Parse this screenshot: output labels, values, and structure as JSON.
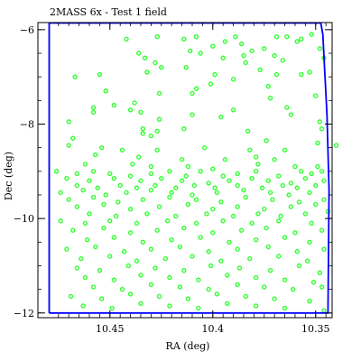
{
  "chart_data": {
    "type": "scatter",
    "title": "2MASS 6x - Test 1 field",
    "xlabel": "RA (deg)",
    "ylabel": "Dec (deg)",
    "xlim": [
      10.485,
      10.342
    ],
    "ylim": [
      -12.1,
      -5.85
    ],
    "x_inverted": true,
    "grid": false,
    "x_ticks": [
      10.45,
      10.4,
      10.35
    ],
    "x_tick_labels": [
      "10.45",
      "10.4",
      "10.35"
    ],
    "y_ticks": [
      -12,
      -10,
      -8,
      -6
    ],
    "y_tick_labels": [
      "−12",
      "−10",
      "−8",
      "−6"
    ],
    "colors": {
      "points": "#33ff33",
      "field_boundary": "#0000ff",
      "axes": "#000000"
    },
    "field_boundary": {
      "ra": [
        10.4795,
        10.4795,
        10.3475,
        10.3465,
        10.3445,
        10.3435,
        10.344,
        10.4795
      ],
      "dec": [
        -12.0,
        -5.86,
        -5.86,
        -6.1,
        -7.8,
        -9.4,
        -12.0,
        -12.0
      ]
    },
    "points": [
      [
        10.427,
        -6.15
      ],
      [
        10.408,
        -6.15
      ],
      [
        10.414,
        -6.2
      ],
      [
        10.394,
        -6.25
      ],
      [
        10.389,
        -6.15
      ],
      [
        10.369,
        -6.15
      ],
      [
        10.364,
        -6.15
      ],
      [
        10.359,
        -6.25
      ],
      [
        10.357,
        -6.2
      ],
      [
        10.352,
        -6.1
      ],
      [
        10.442,
        -6.2
      ],
      [
        10.4,
        -6.35
      ],
      [
        10.386,
        -6.3
      ],
      [
        10.381,
        -6.45
      ],
      [
        10.375,
        -6.4
      ],
      [
        10.37,
        -6.55
      ],
      [
        10.348,
        -6.4
      ],
      [
        10.436,
        -6.5
      ],
      [
        10.411,
        -6.45
      ],
      [
        10.406,
        -6.5
      ],
      [
        10.395,
        -6.6
      ],
      [
        10.385,
        -6.55
      ],
      [
        10.384,
        -6.7
      ],
      [
        10.366,
        -6.65
      ],
      [
        10.346,
        -6.6
      ],
      [
        10.433,
        -6.6
      ],
      [
        10.428,
        -6.7
      ],
      [
        10.432,
        -6.9
      ],
      [
        10.425,
        -6.8
      ],
      [
        10.413,
        -6.8
      ],
      [
        10.399,
        -6.95
      ],
      [
        10.377,
        -6.85
      ],
      [
        10.369,
        -6.95
      ],
      [
        10.357,
        -6.95
      ],
      [
        10.353,
        -6.9
      ],
      [
        10.467,
        -7.0
      ],
      [
        10.455,
        -6.95
      ],
      [
        10.401,
        -7.15
      ],
      [
        10.39,
        -7.05
      ],
      [
        10.373,
        -7.2
      ],
      [
        10.452,
        -7.3
      ],
      [
        10.426,
        -7.35
      ],
      [
        10.41,
        -7.35
      ],
      [
        10.408,
        -7.25
      ],
      [
        10.372,
        -7.45
      ],
      [
        10.35,
        -7.4
      ],
      [
        10.448,
        -7.6
      ],
      [
        10.438,
        -7.55
      ],
      [
        10.435,
        -7.75
      ],
      [
        10.39,
        -7.7
      ],
      [
        10.364,
        -7.65
      ],
      [
        10.458,
        -7.65
      ],
      [
        10.458,
        -7.75
      ],
      [
        10.44,
        -7.7
      ],
      [
        10.426,
        -7.9
      ],
      [
        10.41,
        -7.8
      ],
      [
        10.396,
        -7.85
      ],
      [
        10.362,
        -7.8
      ],
      [
        10.47,
        -7.95
      ],
      [
        10.434,
        -8.1
      ],
      [
        10.434,
        -8.2
      ],
      [
        10.414,
        -8.1
      ],
      [
        10.383,
        -8.15
      ],
      [
        10.348,
        -7.95
      ],
      [
        10.347,
        -8.1
      ],
      [
        10.468,
        -8.3
      ],
      [
        10.43,
        -8.25
      ],
      [
        10.427,
        -8.15
      ],
      [
        10.374,
        -8.35
      ],
      [
        10.34,
        -8.45
      ],
      [
        10.47,
        -8.45
      ],
      [
        10.454,
        -8.5
      ],
      [
        10.444,
        -8.55
      ],
      [
        10.427,
        -8.55
      ],
      [
        10.404,
        -8.5
      ],
      [
        10.382,
        -8.55
      ],
      [
        10.365,
        -8.55
      ],
      [
        10.349,
        -8.4
      ],
      [
        10.457,
        -8.65
      ],
      [
        10.436,
        -8.7
      ],
      [
        10.415,
        -8.75
      ],
      [
        10.394,
        -8.75
      ],
      [
        10.379,
        -8.7
      ],
      [
        10.37,
        -8.75
      ],
      [
        10.462,
        -8.85
      ],
      [
        10.439,
        -8.85
      ],
      [
        10.43,
        -8.9
      ],
      [
        10.412,
        -8.9
      ],
      [
        10.4,
        -8.95
      ],
      [
        10.378,
        -8.85
      ],
      [
        10.36,
        -8.9
      ],
      [
        10.349,
        -8.9
      ],
      [
        10.476,
        -9.0
      ],
      [
        10.466,
        -9.05
      ],
      [
        10.458,
        -9.0
      ],
      [
        10.45,
        -9.05
      ],
      [
        10.44,
        -9.1
      ],
      [
        10.43,
        -9.05
      ],
      [
        10.421,
        -9.0
      ],
      [
        10.413,
        -9.1
      ],
      [
        10.406,
        -9.0
      ],
      [
        10.395,
        -9.1
      ],
      [
        10.388,
        -9.05
      ],
      [
        10.379,
        -9.0
      ],
      [
        10.368,
        -9.1
      ],
      [
        10.357,
        -9.0
      ],
      [
        10.352,
        -9.05
      ],
      [
        10.347,
        -9.0
      ],
      [
        10.471,
        -9.15
      ],
      [
        10.46,
        -9.2
      ],
      [
        10.448,
        -9.15
      ],
      [
        10.435,
        -9.2
      ],
      [
        10.425,
        -9.15
      ],
      [
        10.415,
        -9.2
      ],
      [
        10.402,
        -9.25
      ],
      [
        10.392,
        -9.2
      ],
      [
        10.381,
        -9.15
      ],
      [
        10.373,
        -9.2
      ],
      [
        10.362,
        -9.25
      ],
      [
        10.355,
        -9.15
      ],
      [
        10.346,
        -9.2
      ],
      [
        10.466,
        -9.3
      ],
      [
        10.456,
        -9.35
      ],
      [
        10.445,
        -9.3
      ],
      [
        10.437,
        -9.35
      ],
      [
        10.428,
        -9.3
      ],
      [
        10.418,
        -9.35
      ],
      [
        10.409,
        -9.3
      ],
      [
        10.399,
        -9.35
      ],
      [
        10.388,
        -9.3
      ],
      [
        10.376,
        -9.35
      ],
      [
        10.366,
        -9.3
      ],
      [
        10.359,
        -9.35
      ],
      [
        10.35,
        -9.3
      ],
      [
        10.474,
        -9.45
      ],
      [
        10.463,
        -9.4
      ],
      [
        10.452,
        -9.5
      ],
      [
        10.442,
        -9.45
      ],
      [
        10.43,
        -9.4
      ],
      [
        10.42,
        -9.45
      ],
      [
        10.41,
        -9.5
      ],
      [
        10.398,
        -9.45
      ],
      [
        10.385,
        -9.4
      ],
      [
        10.372,
        -9.45
      ],
      [
        10.363,
        -9.5
      ],
      [
        10.353,
        -9.45
      ],
      [
        10.47,
        -9.6
      ],
      [
        10.458,
        -9.55
      ],
      [
        10.446,
        -9.65
      ],
      [
        10.434,
        -9.6
      ],
      [
        10.421,
        -9.55
      ],
      [
        10.408,
        -9.6
      ],
      [
        10.396,
        -9.65
      ],
      [
        10.384,
        -9.55
      ],
      [
        10.371,
        -9.6
      ],
      [
        10.358,
        -9.65
      ],
      [
        10.346,
        -9.6
      ],
      [
        10.466,
        -9.75
      ],
      [
        10.453,
        -9.7
      ],
      [
        10.44,
        -9.8
      ],
      [
        10.426,
        -9.75
      ],
      [
        10.412,
        -9.7
      ],
      [
        10.4,
        -9.8
      ],
      [
        10.388,
        -9.75
      ],
      [
        10.375,
        -9.8
      ],
      [
        10.362,
        -9.75
      ],
      [
        10.35,
        -9.7
      ],
      [
        10.344,
        -9.85
      ],
      [
        10.46,
        -9.9
      ],
      [
        10.447,
        -9.95
      ],
      [
        10.432,
        -9.9
      ],
      [
        10.418,
        -9.95
      ],
      [
        10.403,
        -9.9
      ],
      [
        10.39,
        -9.95
      ],
      [
        10.378,
        -9.9
      ],
      [
        10.367,
        -9.95
      ],
      [
        10.355,
        -9.9
      ],
      [
        10.474,
        -10.05
      ],
      [
        10.462,
        -10.1
      ],
      [
        10.45,
        -10.05
      ],
      [
        10.437,
        -10.1
      ],
      [
        10.422,
        -10.05
      ],
      [
        10.408,
        -10.1
      ],
      [
        10.395,
        -10.05
      ],
      [
        10.381,
        -10.1
      ],
      [
        10.368,
        -10.05
      ],
      [
        10.352,
        -10.1
      ],
      [
        10.468,
        -10.25
      ],
      [
        10.453,
        -10.2
      ],
      [
        10.44,
        -10.3
      ],
      [
        10.427,
        -10.25
      ],
      [
        10.414,
        -10.2
      ],
      [
        10.4,
        -10.3
      ],
      [
        10.386,
        -10.25
      ],
      [
        10.374,
        -10.2
      ],
      [
        10.36,
        -10.3
      ],
      [
        10.347,
        -10.25
      ],
      [
        10.461,
        -10.45
      ],
      [
        10.448,
        -10.4
      ],
      [
        10.434,
        -10.5
      ],
      [
        10.42,
        -10.45
      ],
      [
        10.406,
        -10.4
      ],
      [
        10.392,
        -10.5
      ],
      [
        10.379,
        -10.45
      ],
      [
        10.365,
        -10.4
      ],
      [
        10.353,
        -10.5
      ],
      [
        10.471,
        -10.65
      ],
      [
        10.457,
        -10.6
      ],
      [
        10.443,
        -10.7
      ],
      [
        10.43,
        -10.65
      ],
      [
        10.416,
        -10.6
      ],
      [
        10.402,
        -10.7
      ],
      [
        10.388,
        -10.65
      ],
      [
        10.373,
        -10.6
      ],
      [
        10.359,
        -10.7
      ],
      [
        10.346,
        -10.65
      ],
      [
        10.464,
        -10.85
      ],
      [
        10.45,
        -10.8
      ],
      [
        10.437,
        -10.9
      ],
      [
        10.423,
        -10.85
      ],
      [
        10.41,
        -10.8
      ],
      [
        10.396,
        -10.9
      ],
      [
        10.382,
        -10.85
      ],
      [
        10.368,
        -10.8
      ],
      [
        10.354,
        -10.9
      ],
      [
        10.466,
        -11.05
      ],
      [
        10.455,
        -11.1
      ],
      [
        10.441,
        -11.0
      ],
      [
        10.428,
        -11.05
      ],
      [
        10.414,
        -11.1
      ],
      [
        10.401,
        -11.0
      ],
      [
        10.387,
        -11.05
      ],
      [
        10.372,
        -11.1
      ],
      [
        10.358,
        -11.0
      ],
      [
        10.348,
        -11.15
      ],
      [
        10.462,
        -11.25
      ],
      [
        10.448,
        -11.3
      ],
      [
        10.435,
        -11.2
      ],
      [
        10.421,
        -11.25
      ],
      [
        10.407,
        -11.3
      ],
      [
        10.393,
        -11.2
      ],
      [
        10.379,
        -11.25
      ],
      [
        10.365,
        -11.3
      ],
      [
        10.351,
        -11.35
      ],
      [
        10.458,
        -11.45
      ],
      [
        10.444,
        -11.5
      ],
      [
        10.43,
        -11.4
      ],
      [
        10.416,
        -11.45
      ],
      [
        10.402,
        -11.5
      ],
      [
        10.388,
        -11.4
      ],
      [
        10.375,
        -11.45
      ],
      [
        10.361,
        -11.5
      ],
      [
        10.347,
        -11.45
      ],
      [
        10.469,
        -11.65
      ],
      [
        10.454,
        -11.7
      ],
      [
        10.44,
        -11.6
      ],
      [
        10.426,
        -11.65
      ],
      [
        10.412,
        -11.7
      ],
      [
        10.398,
        -11.6
      ],
      [
        10.384,
        -11.65
      ],
      [
        10.37,
        -11.7
      ],
      [
        10.353,
        -11.75
      ],
      [
        10.463,
        -11.85
      ],
      [
        10.449,
        -11.9
      ],
      [
        10.435,
        -11.8
      ],
      [
        10.421,
        -11.85
      ],
      [
        10.407,
        -11.9
      ],
      [
        10.393,
        -11.8
      ],
      [
        10.379,
        -11.85
      ],
      [
        10.365,
        -11.9
      ],
      [
        10.346,
        -11.95
      ]
    ]
  }
}
